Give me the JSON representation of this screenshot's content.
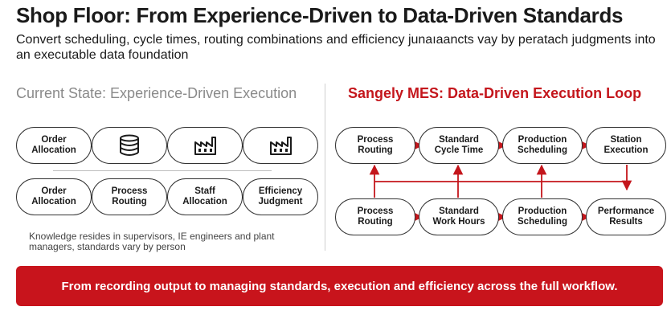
{
  "header": {
    "title": "Shop Floor: From Experience-Driven to Data-Driven Standards",
    "subtitle": "Convert scheduling, cycle times, routing combinations and efficiency junaıaancts vay by peratach judgments into an executable data foundation"
  },
  "current_state": {
    "title": "Current State: Experience-Driven Execution",
    "top_row": [
      {
        "label": "Order\nAllocation",
        "icon": "none"
      },
      {
        "label": "",
        "icon": "database-icon"
      },
      {
        "label": "",
        "icon": "factory-icon"
      },
      {
        "label": "",
        "icon": "factory-icon"
      }
    ],
    "bottom_row": [
      {
        "label": "Order\nAllocation"
      },
      {
        "label": "Process\nRouting"
      },
      {
        "label": "Staff\nAllocation"
      },
      {
        "label": "Efficiency\nJudgment"
      }
    ],
    "note": "Knowledge resides in supervisors, IE engineers and plant managers, standards vary by person"
  },
  "mes_loop": {
    "title": "Sangely MES: Data-Driven Execution Loop",
    "top_row": [
      {
        "label": "Process\nRouting"
      },
      {
        "label": "Standard\nCycle Time"
      },
      {
        "label": "Production\nScheduling"
      },
      {
        "label": "Station\nExecution"
      }
    ],
    "bottom_row": [
      {
        "label": "Process\nRouting"
      },
      {
        "label": "Standard\nWork Hours"
      },
      {
        "label": "Production\nScheduling"
      },
      {
        "label": "Performance\nResults"
      }
    ]
  },
  "banner": {
    "text": "From recording output to managing standards, execution and efficiency across the full workflow."
  },
  "colors": {
    "accent_red": "#c4161c",
    "banner_red": "#c8141c",
    "muted_gray": "#8a8a8a",
    "outline": "#333333"
  }
}
